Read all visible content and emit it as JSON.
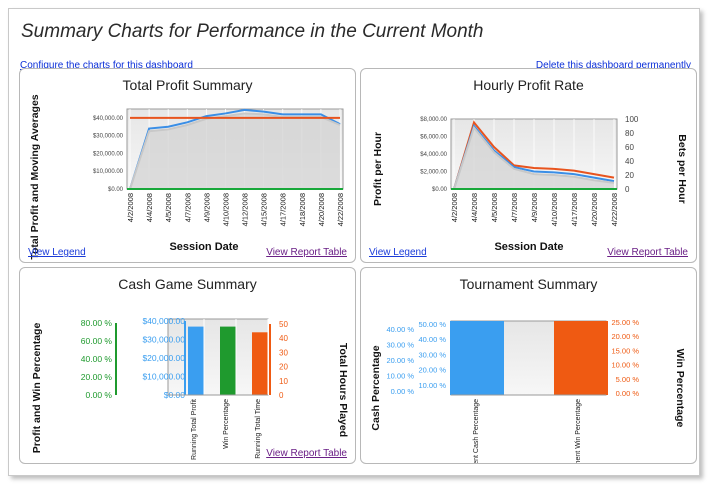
{
  "header": {
    "title": "Summary Charts for Performance in the Current Month",
    "configure_link": "Configure the charts for this dashboard",
    "delete_link": "Delete this dashboard permanently"
  },
  "panels": {
    "total_profit": {
      "title": "Total Profit Summary",
      "legend_link": "View Legend",
      "table_link": "View Report Table"
    },
    "hourly_profit": {
      "title": "Hourly Profit Rate",
      "legend_link": "View Legend",
      "table_link": "View Report Table"
    },
    "cash_game": {
      "title": "Cash Game Summary",
      "table_link": "View Report Table"
    },
    "tournament": {
      "title": "Tournament Summary",
      "table_link": "View Report Table"
    }
  },
  "chart_data": [
    {
      "type": "line",
      "title": "Total Profit Summary",
      "xlabel": "Session Date",
      "ylabel": "Total Profit and Moving Averages",
      "ylim": [
        0,
        45000
      ],
      "yticks": [
        "$0.00",
        "$10,000.00",
        "$20,000.00",
        "$30,000.00",
        "$40,000.00"
      ],
      "x": [
        "4/2/2008",
        "4/4/2008",
        "4/5/2008",
        "4/7/2008",
        "4/9/2008",
        "4/10/2008",
        "4/12/2008",
        "4/15/2008",
        "4/17/2008",
        "4/18/2008",
        "4/20/2008",
        "4/22/2008"
      ],
      "series": [
        {
          "values": [
            0,
            34000,
            35000,
            37500,
            41000,
            42500,
            44500,
            43500,
            42000,
            42000,
            42000,
            36500
          ],
          "color": "#3a8ee6"
        },
        {
          "values": [
            0,
            32500,
            33500,
            36000,
            39500,
            41000,
            42500,
            42000,
            40500,
            40500,
            40500,
            36000
          ],
          "color": "#c8c8c8",
          "fill": true
        },
        {
          "values": [
            40000,
            40000,
            40000,
            40000,
            40000,
            40000,
            40000,
            40000,
            40000,
            40000,
            40000,
            40000
          ],
          "color": "#e8541e"
        }
      ]
    },
    {
      "type": "line",
      "title": "Hourly Profit Rate",
      "xlabel": "Session Date",
      "ylabel": "Profit per Hour",
      "ylabel_right": "Bets per Hour",
      "ylim": [
        0,
        8000
      ],
      "ylim_right": [
        0,
        100
      ],
      "yticks": [
        "$0.00",
        "$2,000.00",
        "$4,000.00",
        "$6,000.00",
        "$8,000.00"
      ],
      "yticks_right": [
        "0",
        "20",
        "40",
        "60",
        "80",
        "100"
      ],
      "x": [
        "4/2/2008",
        "4/4/2008",
        "4/5/2008",
        "4/7/2008",
        "4/9/2008",
        "4/10/2008",
        "4/17/2008",
        "4/20/2008",
        "4/22/2008"
      ],
      "series": [
        {
          "values": [
            0,
            7600,
            4800,
            2700,
            2400,
            2300,
            2100,
            1700,
            1300
          ],
          "color": "#e8541e"
        },
        {
          "values": [
            0,
            7200,
            4400,
            2500,
            2000,
            1900,
            1700,
            1300,
            900
          ],
          "color": "#3a8ee6"
        },
        {
          "values": [
            0,
            7000,
            4200,
            2300,
            1700,
            1600,
            1400,
            1000,
            700
          ],
          "color": "#c8c8c8",
          "fill": true
        }
      ]
    },
    {
      "type": "bar",
      "title": "Cash Game Summary",
      "ylabel": "Profit and Win Percentage",
      "ylabel_right": "Total Hours Played",
      "categories": [
        "Running Total Profit",
        "Win Percentage",
        "Running Total Time"
      ],
      "yticks_pct": [
        "0.00 %",
        "20.00 %",
        "40.00 %",
        "60.00 %",
        "80.00 %"
      ],
      "yticks_money": [
        "$0.00",
        "$10,000.00",
        "$20,000.00",
        "$30,000.00",
        "$40,000.00"
      ],
      "yticks_hours": [
        "0",
        "10",
        "20",
        "30",
        "40",
        "50"
      ],
      "ylim_money": [
        0,
        40000
      ],
      "series": [
        {
          "name": "Running Total Profit",
          "value": 36000,
          "color": "#3a9ef0"
        },
        {
          "name": "Win Percentage",
          "value": 36000,
          "color": "#1f9a2e"
        },
        {
          "name": "Running Total Time",
          "value": 33000,
          "color": "#ef5a12"
        }
      ]
    },
    {
      "type": "bar",
      "title": "Tournament Summary",
      "ylabel": "Cash Percentage",
      "ylabel_right": "Win Percentage",
      "categories": [
        "Tournament Cash Percentage",
        "Tournament Win Percentage"
      ],
      "yticks_left_a": [
        "0.00 %",
        "10.00 %",
        "20.00 %",
        "30.00 %",
        "40.00 %"
      ],
      "yticks_left_b": [
        "10.00 %",
        "20.00 %",
        "30.00 %",
        "40.00 %",
        "50.00 %"
      ],
      "yticks_right": [
        "0.00 %",
        "5.00 %",
        "10.00 %",
        "15.00 %",
        "20.00 %",
        "25.00 %"
      ],
      "series": [
        {
          "name": "Tournament Cash Percentage",
          "value": 50,
          "color": "#3a9ef0"
        },
        {
          "name": "Tournament Win Percentage",
          "value": 25,
          "color": "#ef5a12"
        }
      ]
    }
  ]
}
